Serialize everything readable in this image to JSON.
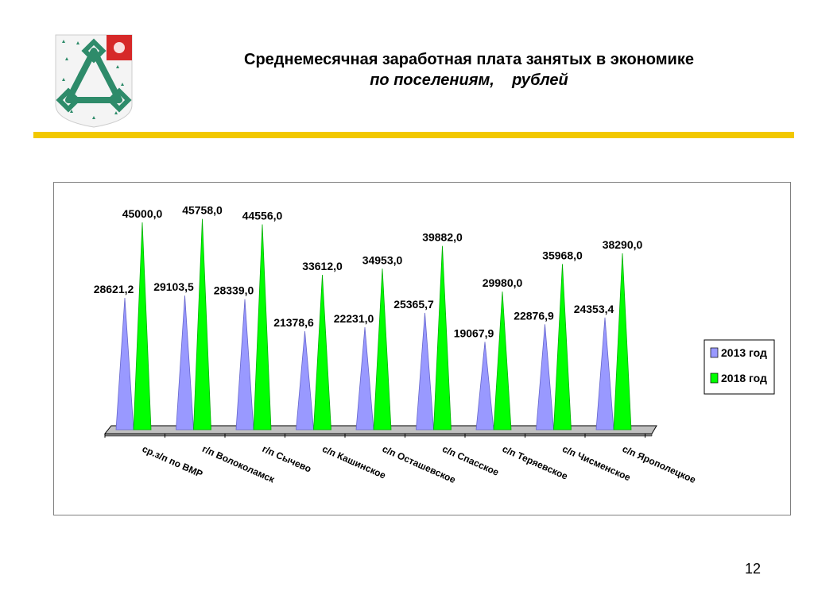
{
  "header": {
    "title": "Среднемесячная заработная плата занятых в экономике",
    "subtitle": "по поселениям,    рублей"
  },
  "emblem": {
    "icon": "coat-of-arms-icon",
    "colors": {
      "field": "#ffffff",
      "knot": "#2e8b6a",
      "corner": "#d62828"
    }
  },
  "divider": {
    "color": "#f2c800"
  },
  "page_number": "12",
  "chart_data": {
    "type": "bar",
    "title": "",
    "xlabel": "",
    "ylabel": "",
    "ylim": [
      0,
      50000
    ],
    "grid": false,
    "legend": "right",
    "categories": [
      "ср.з/п по ВМР",
      "г/п Волоколамск",
      "г/п Сычево",
      "с/п Кашинское",
      "с/п Осташевское",
      "с/п Спасское",
      "с/п Теряевское",
      "с/п Чисменское",
      "с/п Ярополецкое"
    ],
    "series": [
      {
        "name": "2013 год",
        "color": "#9999ff",
        "values": [
          28621.2,
          29103.5,
          28339.0,
          21378.6,
          22231.0,
          25365.7,
          19067.9,
          22876.9,
          24353.4
        ],
        "labels": [
          "28621,2",
          "29103,5",
          "28339,0",
          "21378,6",
          "22231,0",
          "25365,7",
          "19067,9",
          "22876,9",
          "24353,4"
        ]
      },
      {
        "name": "2018 год",
        "color": "#00ff00",
        "values": [
          45000.0,
          45758.0,
          44556.0,
          33612.0,
          34953.0,
          39882.0,
          29980.0,
          35968.0,
          38290.0
        ],
        "labels": [
          "45000,0",
          "45758,0",
          "44556,0",
          "33612,0",
          "34953,0",
          "39882,0",
          "29980,0",
          "35968,0",
          "38290,0"
        ]
      }
    ]
  }
}
